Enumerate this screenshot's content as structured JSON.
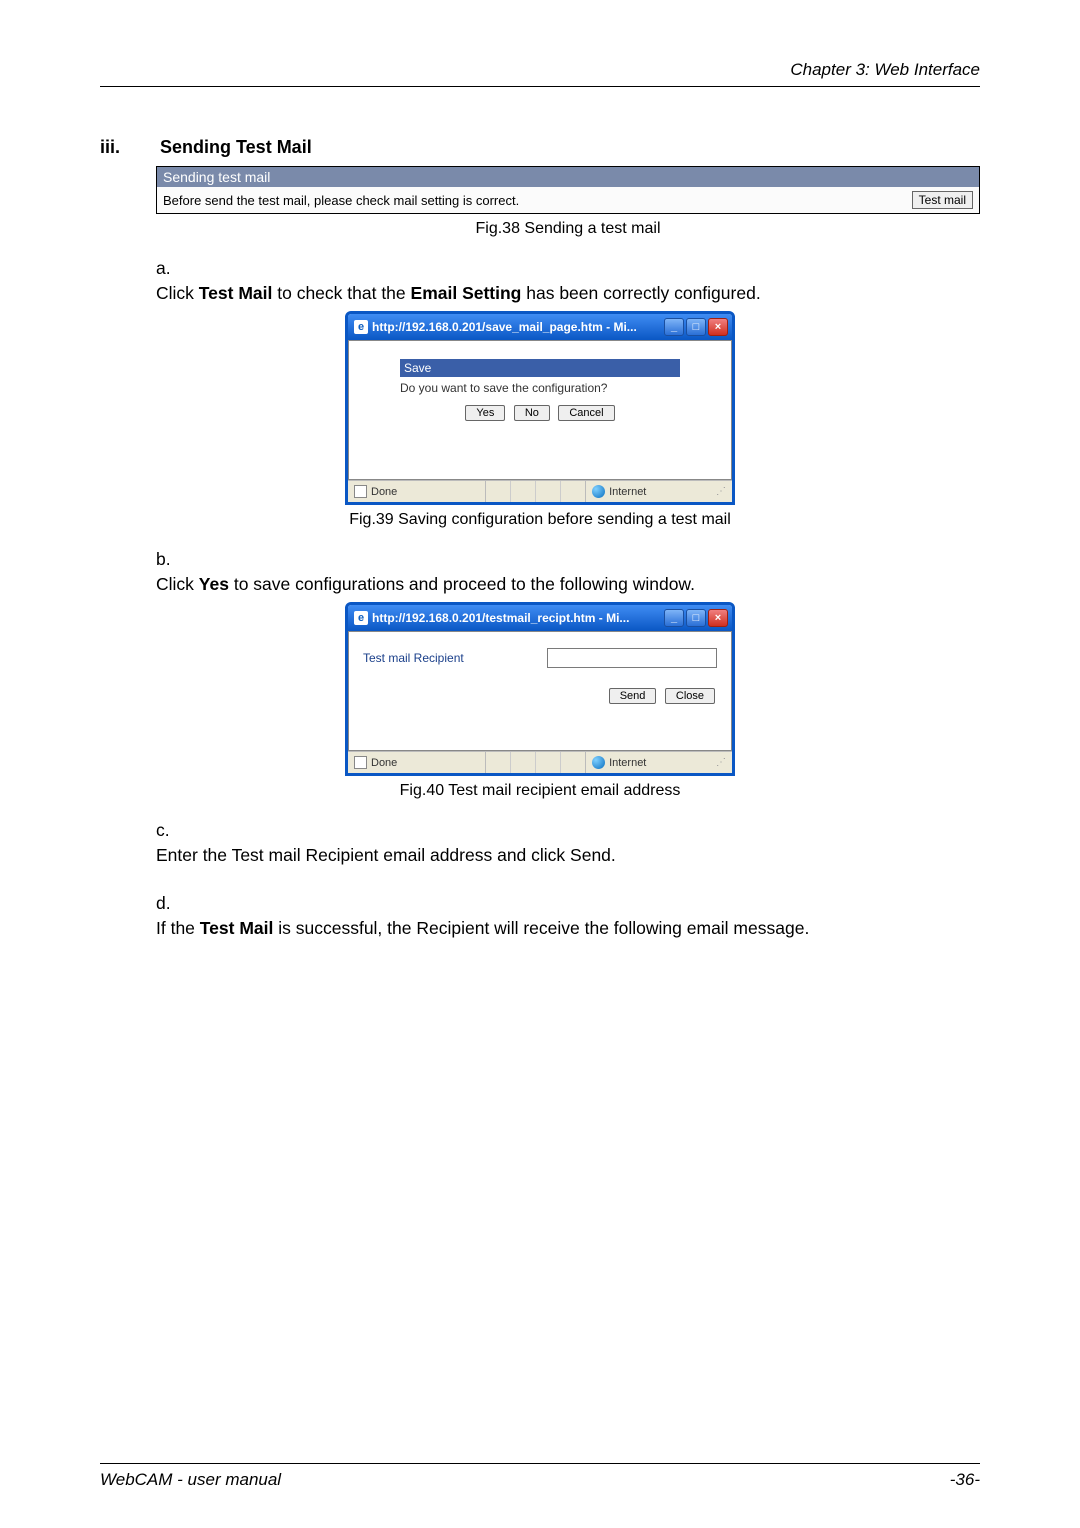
{
  "header": {
    "chapter": "Chapter 3: Web Interface"
  },
  "section": {
    "num": "iii.",
    "title": "Sending Test Mail"
  },
  "fig38": {
    "boxTitle": "Sending test mail",
    "boxText": "Before send the test mail, please check mail setting is correct.",
    "button": "Test mail",
    "caption": "Fig.38  Sending a test mail"
  },
  "stepA": {
    "letter": "a.",
    "pre": "Click ",
    "b1": "Test Mail",
    "mid": " to check that the ",
    "b2": "Email Setting",
    "post": " has been correctly configured."
  },
  "win1": {
    "title": "http://192.168.0.201/save_mail_page.htm - Mi...",
    "saveTitle": "Save",
    "saveMsg": "Do you want to save the configuration?",
    "yes": "Yes",
    "no": "No",
    "cancel": "Cancel",
    "done": "Done",
    "internet": "Internet"
  },
  "fig39": {
    "caption": "Fig.39  Saving configuration before sending a test mail"
  },
  "stepB": {
    "letter": "b.",
    "pre": "Click ",
    "b1": "Yes",
    "post": " to save configurations and proceed to the following window."
  },
  "win2": {
    "title": "http://192.168.0.201/testmail_recipt.htm - Mi...",
    "label": "Test mail Recipient",
    "value": "",
    "send": "Send",
    "close": "Close",
    "done": "Done",
    "internet": "Internet"
  },
  "fig40": {
    "caption": "Fig.40  Test mail recipient email address"
  },
  "stepC": {
    "letter": "c.",
    "text": "Enter the Test mail Recipient email address and click Send."
  },
  "stepD": {
    "letter": "d.",
    "pre": "If the ",
    "b1": "Test Mail",
    "post": " is successful, the Recipient will receive the following email message."
  },
  "footer": {
    "left": "WebCAM - user manual",
    "right": "-36-"
  }
}
